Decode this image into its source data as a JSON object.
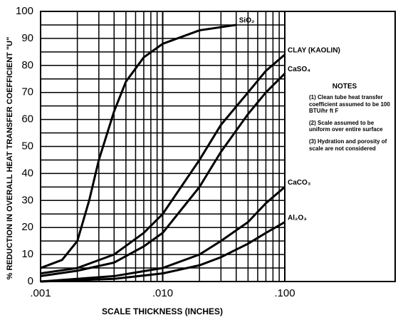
{
  "chart_data": {
    "type": "line",
    "xlabel": "SCALE THICKNESS (INCHES)",
    "ylabel": "% REDUCTION IN OVERALL HEAT TRANSFER COEFFICIENT \"U\"",
    "xlim": [
      0.001,
      0.1
    ],
    "ylim": [
      0,
      100
    ],
    "xscale": "log",
    "grid": true,
    "xticks": [
      {
        "value": 0.001,
        "label": ".001"
      },
      {
        "value": 0.01,
        "label": ".010"
      },
      {
        "value": 0.1,
        "label": ".100"
      }
    ],
    "yticks": [
      0,
      10,
      20,
      30,
      40,
      50,
      60,
      70,
      80,
      90,
      100
    ],
    "series": [
      {
        "name": "SiO₂",
        "color": "#000000",
        "x": [
          0.001,
          0.0015,
          0.002,
          0.0025,
          0.003,
          0.004,
          0.005,
          0.007,
          0.01,
          0.02,
          0.04
        ],
        "values": [
          5,
          8,
          15,
          30,
          45,
          63,
          74,
          83,
          88,
          93,
          95
        ]
      },
      {
        "name": "CLAY (KAOLIN)",
        "color": "#000000",
        "x": [
          0.001,
          0.002,
          0.004,
          0.007,
          0.01,
          0.02,
          0.03,
          0.05,
          0.07,
          0.1
        ],
        "values": [
          3,
          5,
          10,
          18,
          25,
          45,
          58,
          70,
          78,
          84
        ]
      },
      {
        "name": "CaSO₄",
        "color": "#000000",
        "x": [
          0.001,
          0.002,
          0.004,
          0.007,
          0.01,
          0.02,
          0.03,
          0.05,
          0.07,
          0.1
        ],
        "values": [
          2,
          4,
          7,
          13,
          18,
          35,
          48,
          62,
          70,
          77
        ]
      },
      {
        "name": "CaCO₃",
        "color": "#000000",
        "x": [
          0.001,
          0.002,
          0.004,
          0.01,
          0.02,
          0.03,
          0.05,
          0.07,
          0.1
        ],
        "values": [
          0,
          1,
          2,
          5,
          10,
          15,
          22,
          29,
          35
        ]
      },
      {
        "name": "Al₂O₃",
        "color": "#000000",
        "x": [
          0.001,
          0.004,
          0.01,
          0.02,
          0.03,
          0.05,
          0.07,
          0.1
        ],
        "values": [
          0,
          1,
          3,
          6,
          9,
          14,
          18,
          22
        ]
      }
    ],
    "notes": {
      "title": "NOTES",
      "items": [
        "(1) Clean tube heat transfer coefficient assumed to be 100 BTU/hr ft F",
        "(2) Scale assumed to be uniform over entire surface",
        "(3) Hydration and porosity of scale are not considered"
      ]
    }
  }
}
